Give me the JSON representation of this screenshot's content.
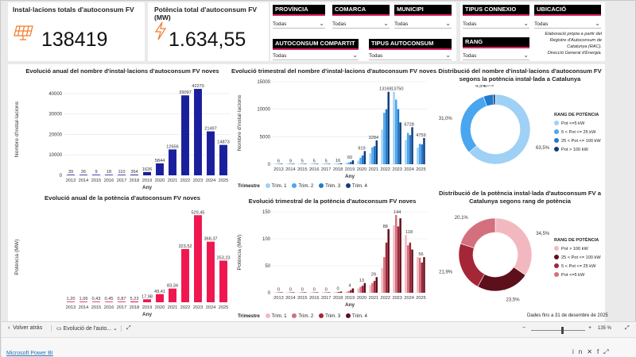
{
  "kpis": {
    "installs": {
      "title": "Instal·lacions totals d'autoconsum FV",
      "value": "138419"
    },
    "power": {
      "title": "Potència total d'autoconsum FV (MW)",
      "value": "1.634,55"
    }
  },
  "slicers": {
    "provincia": {
      "label": "PROVÍNCIA",
      "value": "Todas"
    },
    "comarca": {
      "label": "COMARCA",
      "value": "Todas"
    },
    "municipi": {
      "label": "MUNICIPI",
      "value": "Todas"
    },
    "tipus_connexio": {
      "label": "TIPUS CONNEXIO",
      "value": "Todas"
    },
    "ubicacio": {
      "label": "UBICACIÓ",
      "value": "Todas"
    },
    "autoconsum_compartit": {
      "label": "AUTOCONSUM COMPARTIT",
      "value": "Todas"
    },
    "tipus_autoconsum": {
      "label": "TIPUS AUTOCONSUM",
      "value": "Todas"
    },
    "rang": {
      "label": "RANG",
      "value": "Todas"
    }
  },
  "credit": {
    "line1": "Elaboració pròpia a partir del",
    "line2": "Registre d'Autoconsum de",
    "line3": "Catalunya (RAC).",
    "line4": "Direcció General d'Energia."
  },
  "titles": {
    "annual_installs": "Evolució anual del nombre d'instal·lacions d'autoconsum FV noves",
    "quarterly_installs": "Evolució trimestral del nombre d'instal·lacions d'autoconsum FV noves",
    "donut_installs_1": "Distribució del nombre d'instal·lacions d'autoconsum FV",
    "donut_installs_2": "segons la potència instal·lada a Catalunya",
    "annual_power": "Evolució anual de la potència d'autoconsum FV noves",
    "quarterly_power": "Evolució trimestral de la potència d'autoconsum FV noves",
    "donut_power_1": "Distribució de la potència instal·lada d'autoconsum FV a",
    "donut_power_2": "Catalunya segons rang de potència"
  },
  "legends": {
    "trimestre": "Trimestre",
    "quarters": [
      "Trim. 1",
      "Trim. 2",
      "Trim. 3",
      "Trim. 4"
    ],
    "rang_title": "RANG DE POTÈNCIA"
  },
  "date_note": "Dades fins a 31 de desembre de 2025",
  "footer": {
    "back": "Volver atrás",
    "tab": "Evolució de l'auto...",
    "zoom": "135 %",
    "powerbi": "Microsoft Power BI"
  },
  "colors": {
    "navy": "#1a1f9c",
    "crimson": "#f0164f",
    "q1": "#9fd0f5",
    "q2": "#4aa6ee",
    "q3": "#1f7ad0",
    "q4": "#0d3d7a",
    "p1": "#f2b8c0",
    "p2": "#d4707e",
    "p3": "#a52637",
    "p4": "#5e0f1c"
  },
  "chart_data": [
    {
      "type": "bar",
      "id": "annual_installs",
      "categories": [
        "2013",
        "2014",
        "2015",
        "2016",
        "2017",
        "2018",
        "2019",
        "2020",
        "2021",
        "2022",
        "2023",
        "2024",
        "2025"
      ],
      "values": [
        39,
        26,
        9,
        18,
        110,
        354,
        1626,
        5844,
        12656,
        39097,
        42270,
        21497,
        14873
      ],
      "labels": [
        "39",
        "26",
        "9",
        "18",
        "110",
        "354",
        "1626",
        "5844",
        "12656",
        "39097",
        "42270",
        "21497",
        "14873"
      ],
      "xlabel": "Any",
      "ylabel": "Nombre d'instal·lacions",
      "ylim": [
        0,
        45000
      ],
      "yticks": [
        "0",
        "10000",
        "20000",
        "30000",
        "40000"
      ],
      "ytick_values": [
        0,
        10000,
        20000,
        30000,
        40000
      ]
    },
    {
      "type": "bar",
      "id": "quarterly_installs",
      "categories": [
        "2013",
        "2014",
        "2015",
        "2016",
        "2017",
        "2018",
        "2019",
        "2020",
        "2021",
        "2022",
        "2023",
        "2024",
        "2025"
      ],
      "annual_labels": [
        "6",
        "9",
        "5",
        "5",
        "5",
        "16",
        "60",
        "919",
        "3284",
        "13169",
        "13750",
        "6728",
        "4759"
      ],
      "series": [
        {
          "name": "Trim. 1",
          "values": [
            2,
            3,
            2,
            2,
            15,
            35,
            200,
            650,
            2000,
            6300,
            13169,
            4400,
            3000
          ]
        },
        {
          "name": "Trim. 2",
          "values": [
            2,
            3,
            2,
            2,
            22,
            60,
            300,
            1200,
            3050,
            9350,
            11750,
            5700,
            3700
          ]
        },
        {
          "name": "Trim. 3",
          "values": [
            1,
            2,
            1,
            2,
            30,
            90,
            420,
            1600,
            3284,
            10000,
            10022,
            5300,
            3600
          ]
        },
        {
          "name": "Trim. 4",
          "values": [
            1,
            1,
            1,
            2,
            43,
            169,
            706,
            2394,
            4322,
            13169,
            7599,
            6728,
            4759
          ]
        }
      ],
      "bar_labels": [
        "6",
        "9",
        "5",
        "5",
        "5",
        "16",
        "60",
        "919",
        "3284",
        "6339",
        "9359",
        "13169",
        "13750",
        "10022",
        "7599",
        "6728",
        "4727",
        "4759",
        "4400"
      ],
      "xlabel": "Any",
      "ylabel": "Nombre d'instal·lacions",
      "ylim": [
        0,
        15000
      ],
      "yticks": [
        "0",
        "5000",
        "10000",
        "15000"
      ],
      "ytick_values": [
        0,
        5000,
        10000,
        15000
      ]
    },
    {
      "type": "pie",
      "id": "donut_installs",
      "slices": [
        {
          "name": "Pot <=5 kW",
          "value": 63.5,
          "label": "63,5%"
        },
        {
          "name": "5 < Pot <= 25 kW",
          "value": 31.0,
          "label": "31,0%"
        },
        {
          "name": "25 < Pot <= 100 kW",
          "value": 4.5,
          "label": "4,5%"
        },
        {
          "name": "Pot > 100 kW",
          "value": 1.0,
          "label": "1,0%"
        }
      ]
    },
    {
      "type": "bar",
      "id": "annual_power",
      "categories": [
        "2013",
        "2014",
        "2015",
        "2016",
        "2017",
        "2018",
        "2019",
        "2020",
        "2021",
        "2022",
        "2023",
        "2024",
        "2025"
      ],
      "values": [
        1.2,
        1.06,
        0.43,
        0.45,
        0.87,
        5.23,
        17.98,
        49.41,
        83.34,
        323.52,
        529.45,
        368.37,
        253.23
      ],
      "labels": [
        "1,20",
        "1,06",
        "0,43",
        "0,45",
        "0,87",
        "5,23",
        "17,98",
        "49,41",
        "83,34",
        "323,52",
        "529,45",
        "368,37",
        "253,23"
      ],
      "xlabel": "Any",
      "ylabel": "Potència (MW)",
      "ylim": [
        0,
        550
      ],
      "yticks": [],
      "ytick_values": []
    },
    {
      "type": "bar",
      "id": "quarterly_power",
      "categories": [
        "2013",
        "2014",
        "2015",
        "2016",
        "2017",
        "2018",
        "2019",
        "2020",
        "2021",
        "2022",
        "2023",
        "2024",
        "2025"
      ],
      "annual_labels": [
        "0",
        "0",
        "0",
        "0",
        "0",
        "0",
        "4",
        "13",
        "29",
        "88",
        "144",
        "118",
        "56"
      ],
      "series": [
        {
          "name": "Trim. 1",
          "values": [
            0.2,
            0.2,
            0.1,
            0.1,
            0.1,
            0.5,
            2,
            8,
            14,
            46,
            125,
            107,
            66
          ]
        },
        {
          "name": "Trim. 2",
          "values": [
            0.3,
            0.3,
            0.1,
            0.1,
            0.2,
            1.0,
            3,
            11,
            18,
            66,
            144,
            88,
            65
          ]
        },
        {
          "name": "Trim. 3",
          "values": [
            0.3,
            0.3,
            0.1,
            0.1,
            0.2,
            1.5,
            5,
            13,
            22,
            93,
            123,
            93,
            56
          ]
        },
        {
          "name": "Trim. 4",
          "values": [
            0.4,
            0.3,
            0.1,
            0.1,
            0.3,
            2.2,
            8,
            18,
            29,
            118,
            138,
            80,
            66
          ]
        }
      ],
      "bar_labels": [
        "0",
        "0",
        "0",
        "0",
        "0",
        "0",
        "0",
        "0",
        "0",
        "0",
        "0",
        "0",
        "0",
        "1",
        "1",
        "1",
        "1",
        "1",
        "2",
        "3",
        "4",
        "4",
        "6",
        "8",
        "9",
        "13",
        "14",
        "18",
        "19",
        "29",
        "46",
        "66",
        "93",
        "118",
        "107",
        "125",
        "144",
        "123",
        "138",
        "88",
        "80",
        "93",
        "66",
        "65",
        "56"
      ],
      "xlabel": "Any",
      "ylabel": "Potència (MW)",
      "ylim": [
        0,
        150
      ],
      "yticks": [
        "0",
        "50",
        "100",
        "150"
      ],
      "ytick_values": [
        0,
        50,
        100,
        150
      ]
    },
    {
      "type": "pie",
      "id": "donut_power",
      "slices": [
        {
          "name": "Pot > 100 kW",
          "value": 34.5,
          "label": "34,5%"
        },
        {
          "name": "25 < Pot <= 100 kW",
          "value": 23.5,
          "label": "23,5%"
        },
        {
          "name": "5 < Pot <= 25 kW",
          "value": 21.9,
          "label": "21,9%"
        },
        {
          "name": "Pot <=5 kW",
          "value": 20.1,
          "label": "20,1%"
        }
      ]
    }
  ]
}
